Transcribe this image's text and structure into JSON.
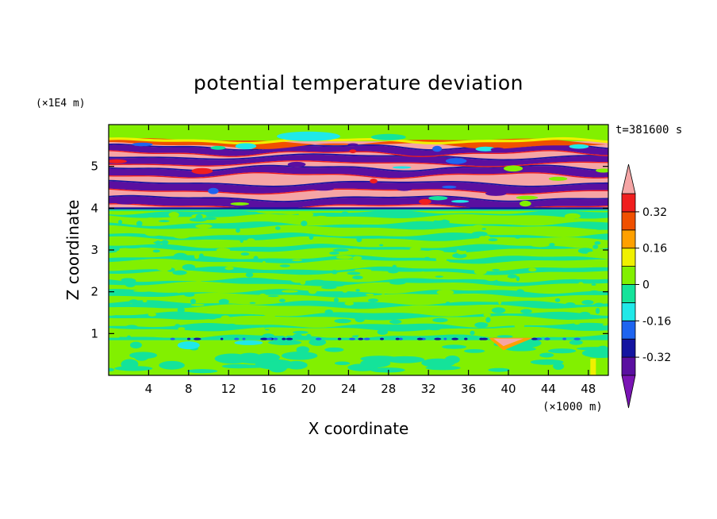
{
  "chart_data": {
    "type": "heatmap",
    "title": "potential temperature deviation",
    "xlabel": "X coordinate",
    "ylabel": "Z coordinate",
    "x_unit_label": "(×1000 m)",
    "y_unit_label": "(×1E4 m)",
    "time_label": "t=381600 s",
    "x_range": [
      0,
      50
    ],
    "y_range": [
      0,
      6
    ],
    "x_ticks": [
      "4",
      "8",
      "12",
      "16",
      "20",
      "24",
      "28",
      "32",
      "36",
      "40",
      "44",
      "48"
    ],
    "x_tick_values": [
      4,
      8,
      12,
      16,
      20,
      24,
      28,
      32,
      36,
      40,
      44,
      48
    ],
    "y_ticks": [
      "1",
      "2",
      "3",
      "4",
      "5"
    ],
    "y_tick_values": [
      1,
      2,
      3,
      4,
      5
    ],
    "colorbar": {
      "levels": [
        -0.4,
        -0.32,
        -0.24,
        -0.16,
        -0.08,
        0,
        0.08,
        0.16,
        0.24,
        0.32,
        0.4
      ],
      "tick_labels": [
        "0.32",
        "0.16",
        "0",
        "-0.16",
        "-0.32"
      ],
      "tick_values": [
        0.32,
        0.16,
        0,
        -0.16,
        -0.32
      ],
      "colors": [
        "#7a14b4",
        "#5a0fa0",
        "#1414a0",
        "#1e64f0",
        "#20e8e8",
        "#14e39a",
        "#82f000",
        "#f0f000",
        "#ffa000",
        "#f05000",
        "#f01e1e",
        "#f5a5a5"
      ],
      "extend": "both"
    },
    "bands": [
      {
        "z": [
          0.0,
          0.85
        ],
        "value": 0.0,
        "note": "near-surface mix of 0 and -0.08"
      },
      {
        "z": [
          0.85,
          0.9
        ],
        "value": -0.32,
        "note": "thin cold layer with spots"
      },
      {
        "z": [
          0.9,
          4.0
        ],
        "value": 0.0,
        "note": "alternating 0 / -0.08 striations"
      },
      {
        "z": [
          4.0,
          5.6
        ],
        "value": 0.4,
        "note": "strong alternating positive/negative layers"
      },
      {
        "z": [
          5.6,
          6.0
        ],
        "value": 0.0
      }
    ]
  }
}
